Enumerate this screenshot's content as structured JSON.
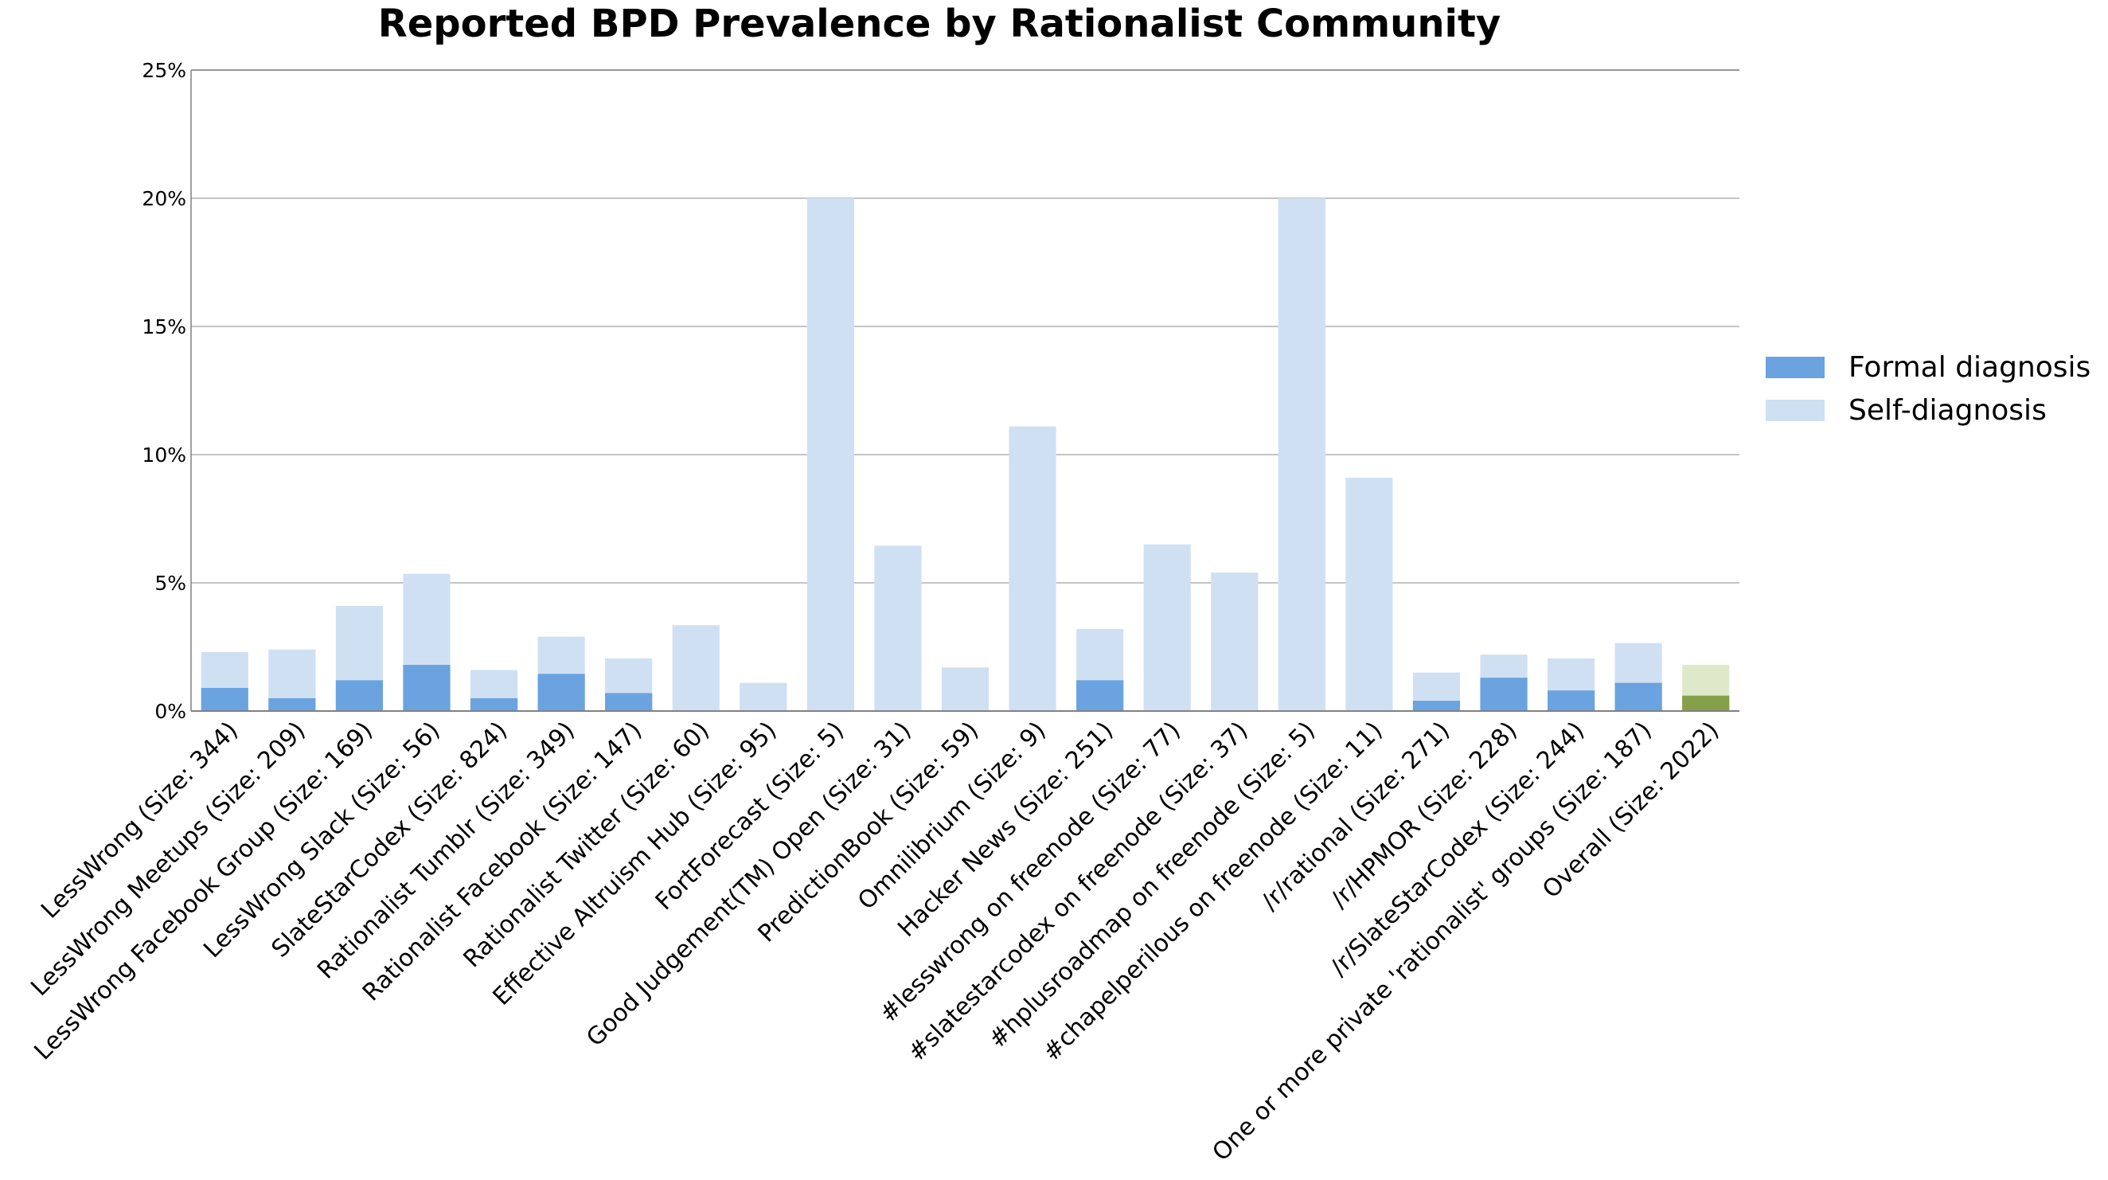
{
  "chart_data": {
    "type": "bar",
    "stacked": "overlay",
    "title": "Reported BPD Prevalence by Rationalist Community",
    "xlabel": "",
    "ylabel": "",
    "ylim": [
      0,
      25
    ],
    "yticks": [
      "0%",
      "5%",
      "10%",
      "15%",
      "20%",
      "25%"
    ],
    "grid": "horizontal",
    "legend_position": "right",
    "categories": [
      "LessWrong (Size: 344)",
      "LessWrong Meetups (Size: 209)",
      "LessWrong Facebook Group (Size: 169)",
      "LessWrong Slack (Size: 56)",
      "SlateStarCodex (Size: 824)",
      "Rationalist Tumblr (Size: 349)",
      "Rationalist Facebook (Size: 147)",
      "Rationalist Twitter (Size: 60)",
      "Effective Altruism Hub (Size: 95)",
      "FortForecast (Size: 5)",
      "Good Judgement(TM) Open (Size: 31)",
      "PredictionBook (Size: 59)",
      "Omnilibrium (Size: 9)",
      "Hacker News (Size: 251)",
      "#lesswrong on freenode (Size: 77)",
      "#slatestarcodex on freenode (Size: 37)",
      "#hplusroadmap on freenode (Size: 5)",
      "#chapelperilous on freenode (Size: 11)",
      "/r/rational (Size: 271)",
      "/r/HPMOR (Size: 228)",
      "/r/SlateStarCodex (Size: 244)",
      "One or more private 'rationalist' groups (Size: 187)",
      "Overall (Size: 2022)"
    ],
    "series": [
      {
        "name": "Formal diagnosis",
        "color": "#6aa3e0",
        "highlight_color": "#86a04a",
        "values": [
          0.9,
          0.5,
          1.2,
          1.8,
          0.5,
          1.45,
          0.7,
          0,
          0,
          0,
          0,
          0,
          0,
          1.2,
          0,
          0,
          0,
          0,
          0.4,
          1.3,
          0.8,
          1.1,
          0.6
        ]
      },
      {
        "name": "Self-diagnosis",
        "color": "#d0e0f3",
        "highlight_color": "#dde9c8",
        "values": [
          2.3,
          2.4,
          4.1,
          5.35,
          1.6,
          2.9,
          2.05,
          3.35,
          1.1,
          20.0,
          6.45,
          1.7,
          11.1,
          3.2,
          6.5,
          5.4,
          20.0,
          9.1,
          1.5,
          2.2,
          2.05,
          2.65,
          1.8
        ]
      }
    ],
    "highlighted_category": "Overall (Size: 2022)"
  }
}
